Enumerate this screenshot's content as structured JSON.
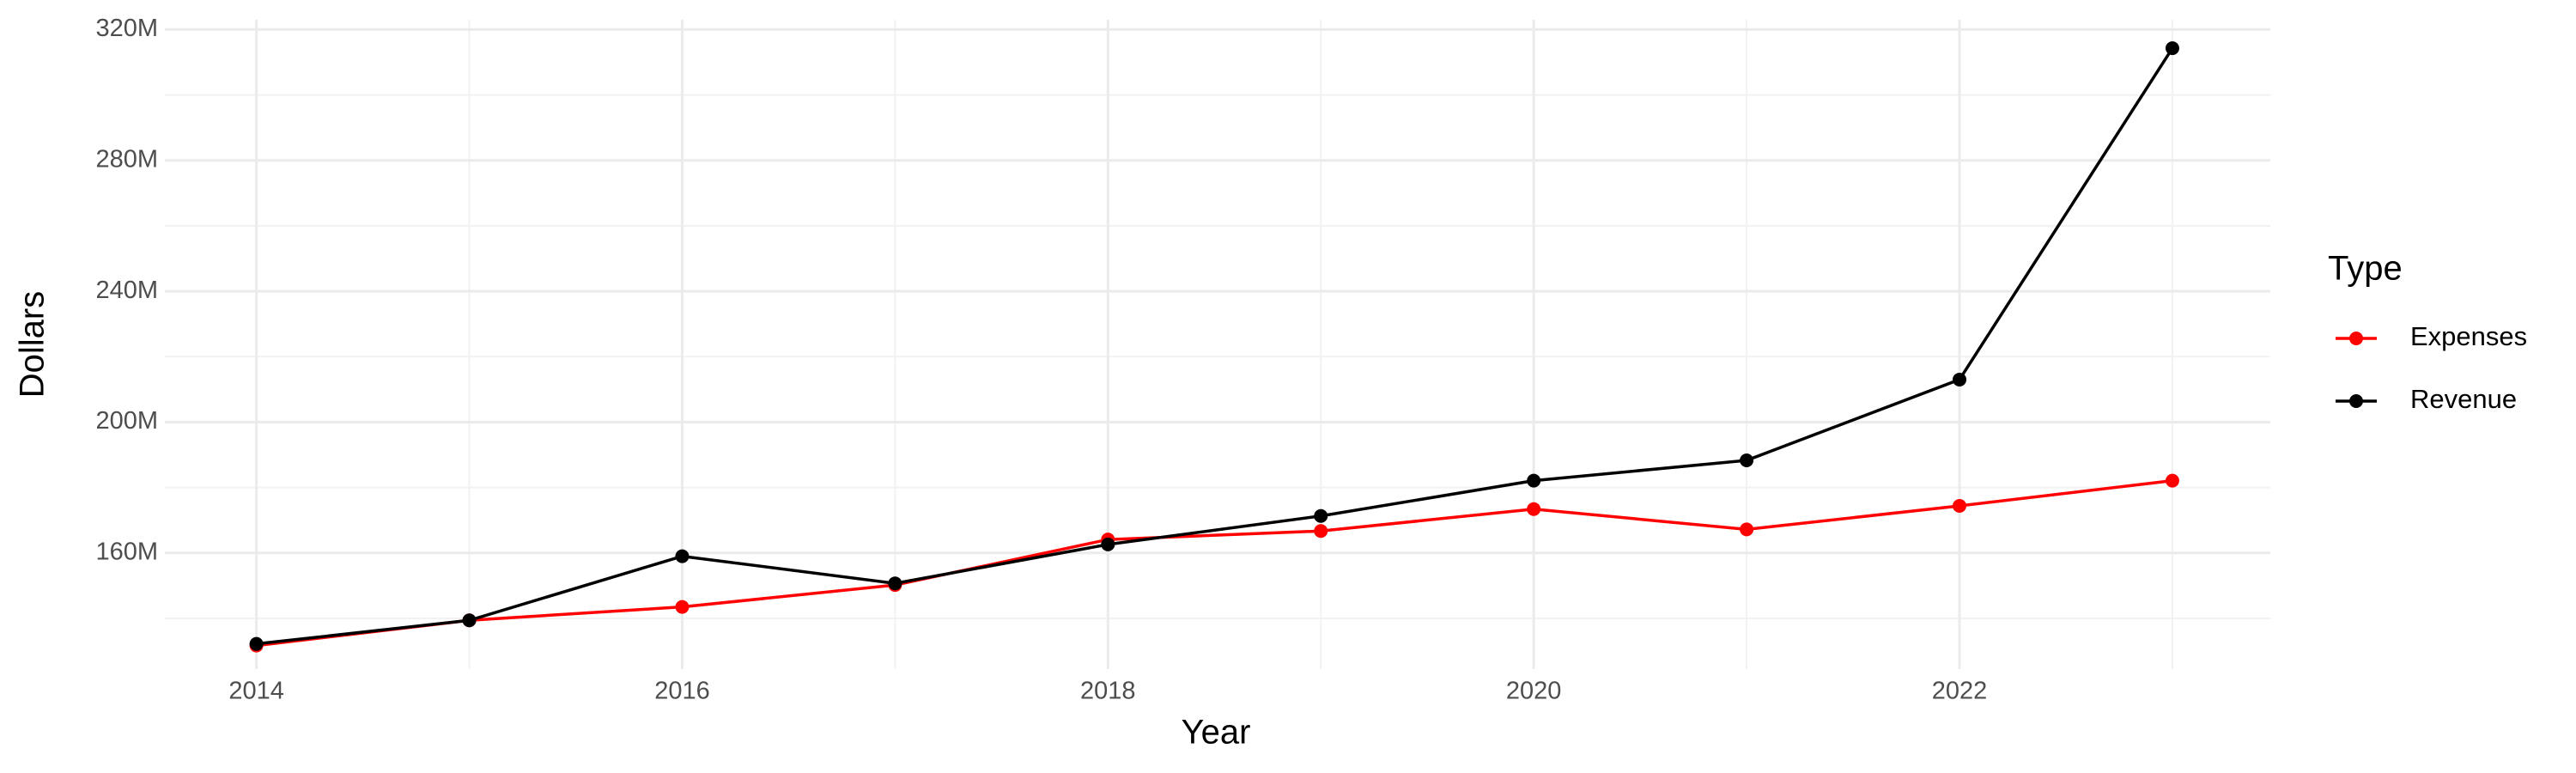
{
  "chart_data": {
    "type": "line",
    "x_label": "Year",
    "y_label": "Dollars",
    "legend_title": "Type",
    "x": [
      2014,
      2015,
      2016,
      2017,
      2018,
      2019,
      2020,
      2021,
      2022,
      2023
    ],
    "series": [
      {
        "name": "Expenses",
        "color": "#ff0000",
        "values": [
          131700000,
          139400000,
          143500000,
          150200000,
          164100000,
          166700000,
          173400000,
          167200000,
          174400000,
          182100000
        ]
      },
      {
        "name": "Revenue",
        "color": "#000000",
        "values": [
          132200000,
          139400000,
          159000000,
          150700000,
          162600000,
          171300000,
          182100000,
          188300000,
          213000000,
          314300000
        ]
      }
    ],
    "xlim": [
      2013.57,
      2023.46
    ],
    "xticks": [
      2014,
      2016,
      2018,
      2020,
      2022
    ],
    "ylim": [
      124500000,
      323000000
    ],
    "yticks": [
      {
        "value": 160000000,
        "label": "160M"
      },
      {
        "value": 200000000,
        "label": "200M"
      },
      {
        "value": 240000000,
        "label": "240M"
      },
      {
        "value": 280000000,
        "label": "280M"
      },
      {
        "value": 320000000,
        "label": "320M"
      }
    ],
    "grid": true,
    "legend": "right"
  }
}
